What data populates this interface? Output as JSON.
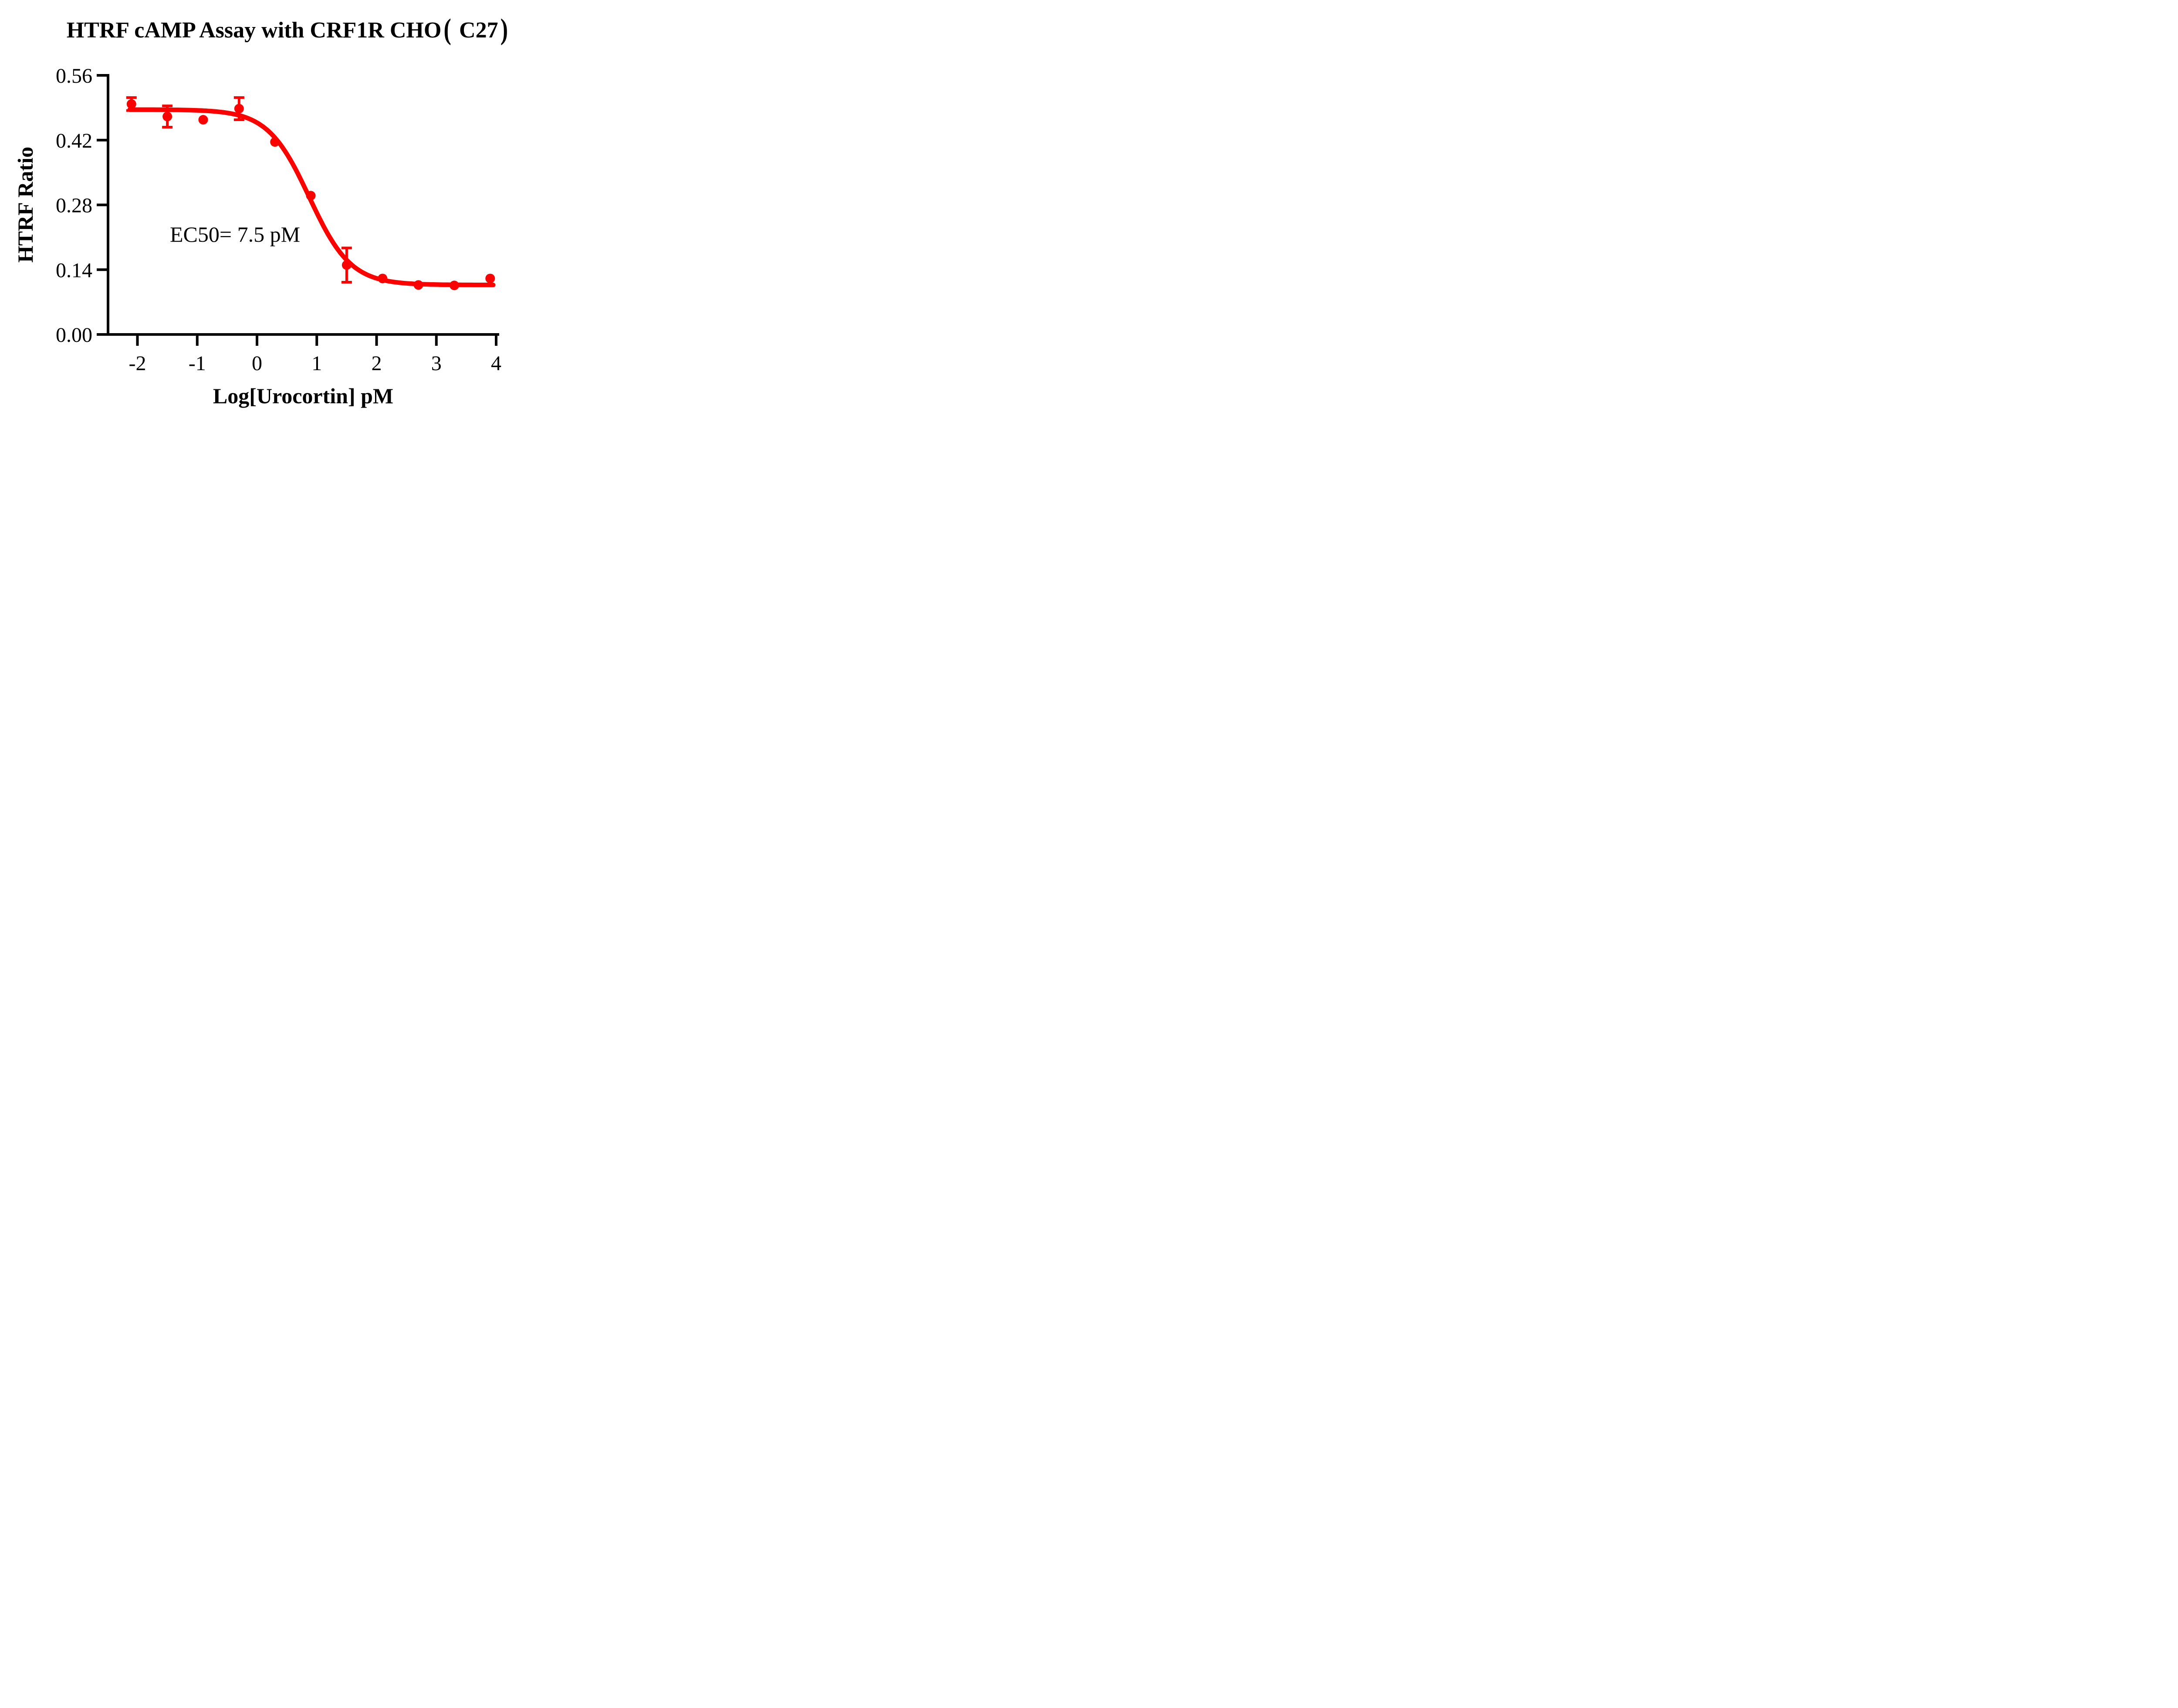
{
  "title": "HTRF cAMP Assay with CRF1R CHO（ C27）",
  "chart_data": {
    "type": "scatter",
    "title": "HTRF cAMP Assay with CRF1R CHO（ C27）",
    "xlabel": "Log[Urocortin] pM",
    "ylabel": "HTRF Ratio",
    "xlim": [
      -2.5,
      4.05
    ],
    "ylim": [
      0,
      0.56
    ],
    "x_ticks": [
      -2,
      -1,
      0,
      1,
      2,
      3,
      4
    ],
    "y_ticks": [
      0,
      0.14,
      0.28,
      0.42,
      0.56
    ],
    "y_tick_labels": [
      "0.00",
      "0.14",
      "0.28",
      "0.42",
      "0.56"
    ],
    "grid": false,
    "legend": "none",
    "series_color": "#ff0000",
    "axis_color": "#000000",
    "ec50_label": "EC50= 7.5 pM",
    "ec50_pM": 7.5,
    "points": [
      {
        "x": -2.1,
        "y": 0.498,
        "se": 0.014
      },
      {
        "x": -1.5,
        "y": 0.471,
        "se": 0.023
      },
      {
        "x": -0.9,
        "y": 0.464,
        "se": 0
      },
      {
        "x": -0.3,
        "y": 0.488,
        "se": 0.024
      },
      {
        "x": 0.3,
        "y": 0.416,
        "se": 0
      },
      {
        "x": 0.9,
        "y": 0.3,
        "se": 0
      },
      {
        "x": 1.5,
        "y": 0.15,
        "se": 0.037
      },
      {
        "x": 2.1,
        "y": 0.121,
        "se": 0
      },
      {
        "x": 2.7,
        "y": 0.107,
        "se": 0
      },
      {
        "x": 3.3,
        "y": 0.106,
        "se": 0
      },
      {
        "x": 3.9,
        "y": 0.121,
        "se": 0
      }
    ],
    "fit_curve": {
      "model": "4PL",
      "top": 0.486,
      "bottom": 0.107,
      "logEC50": 0.875,
      "hillslope": 1.25,
      "x_start": -2.13,
      "x_end": 3.95
    }
  }
}
